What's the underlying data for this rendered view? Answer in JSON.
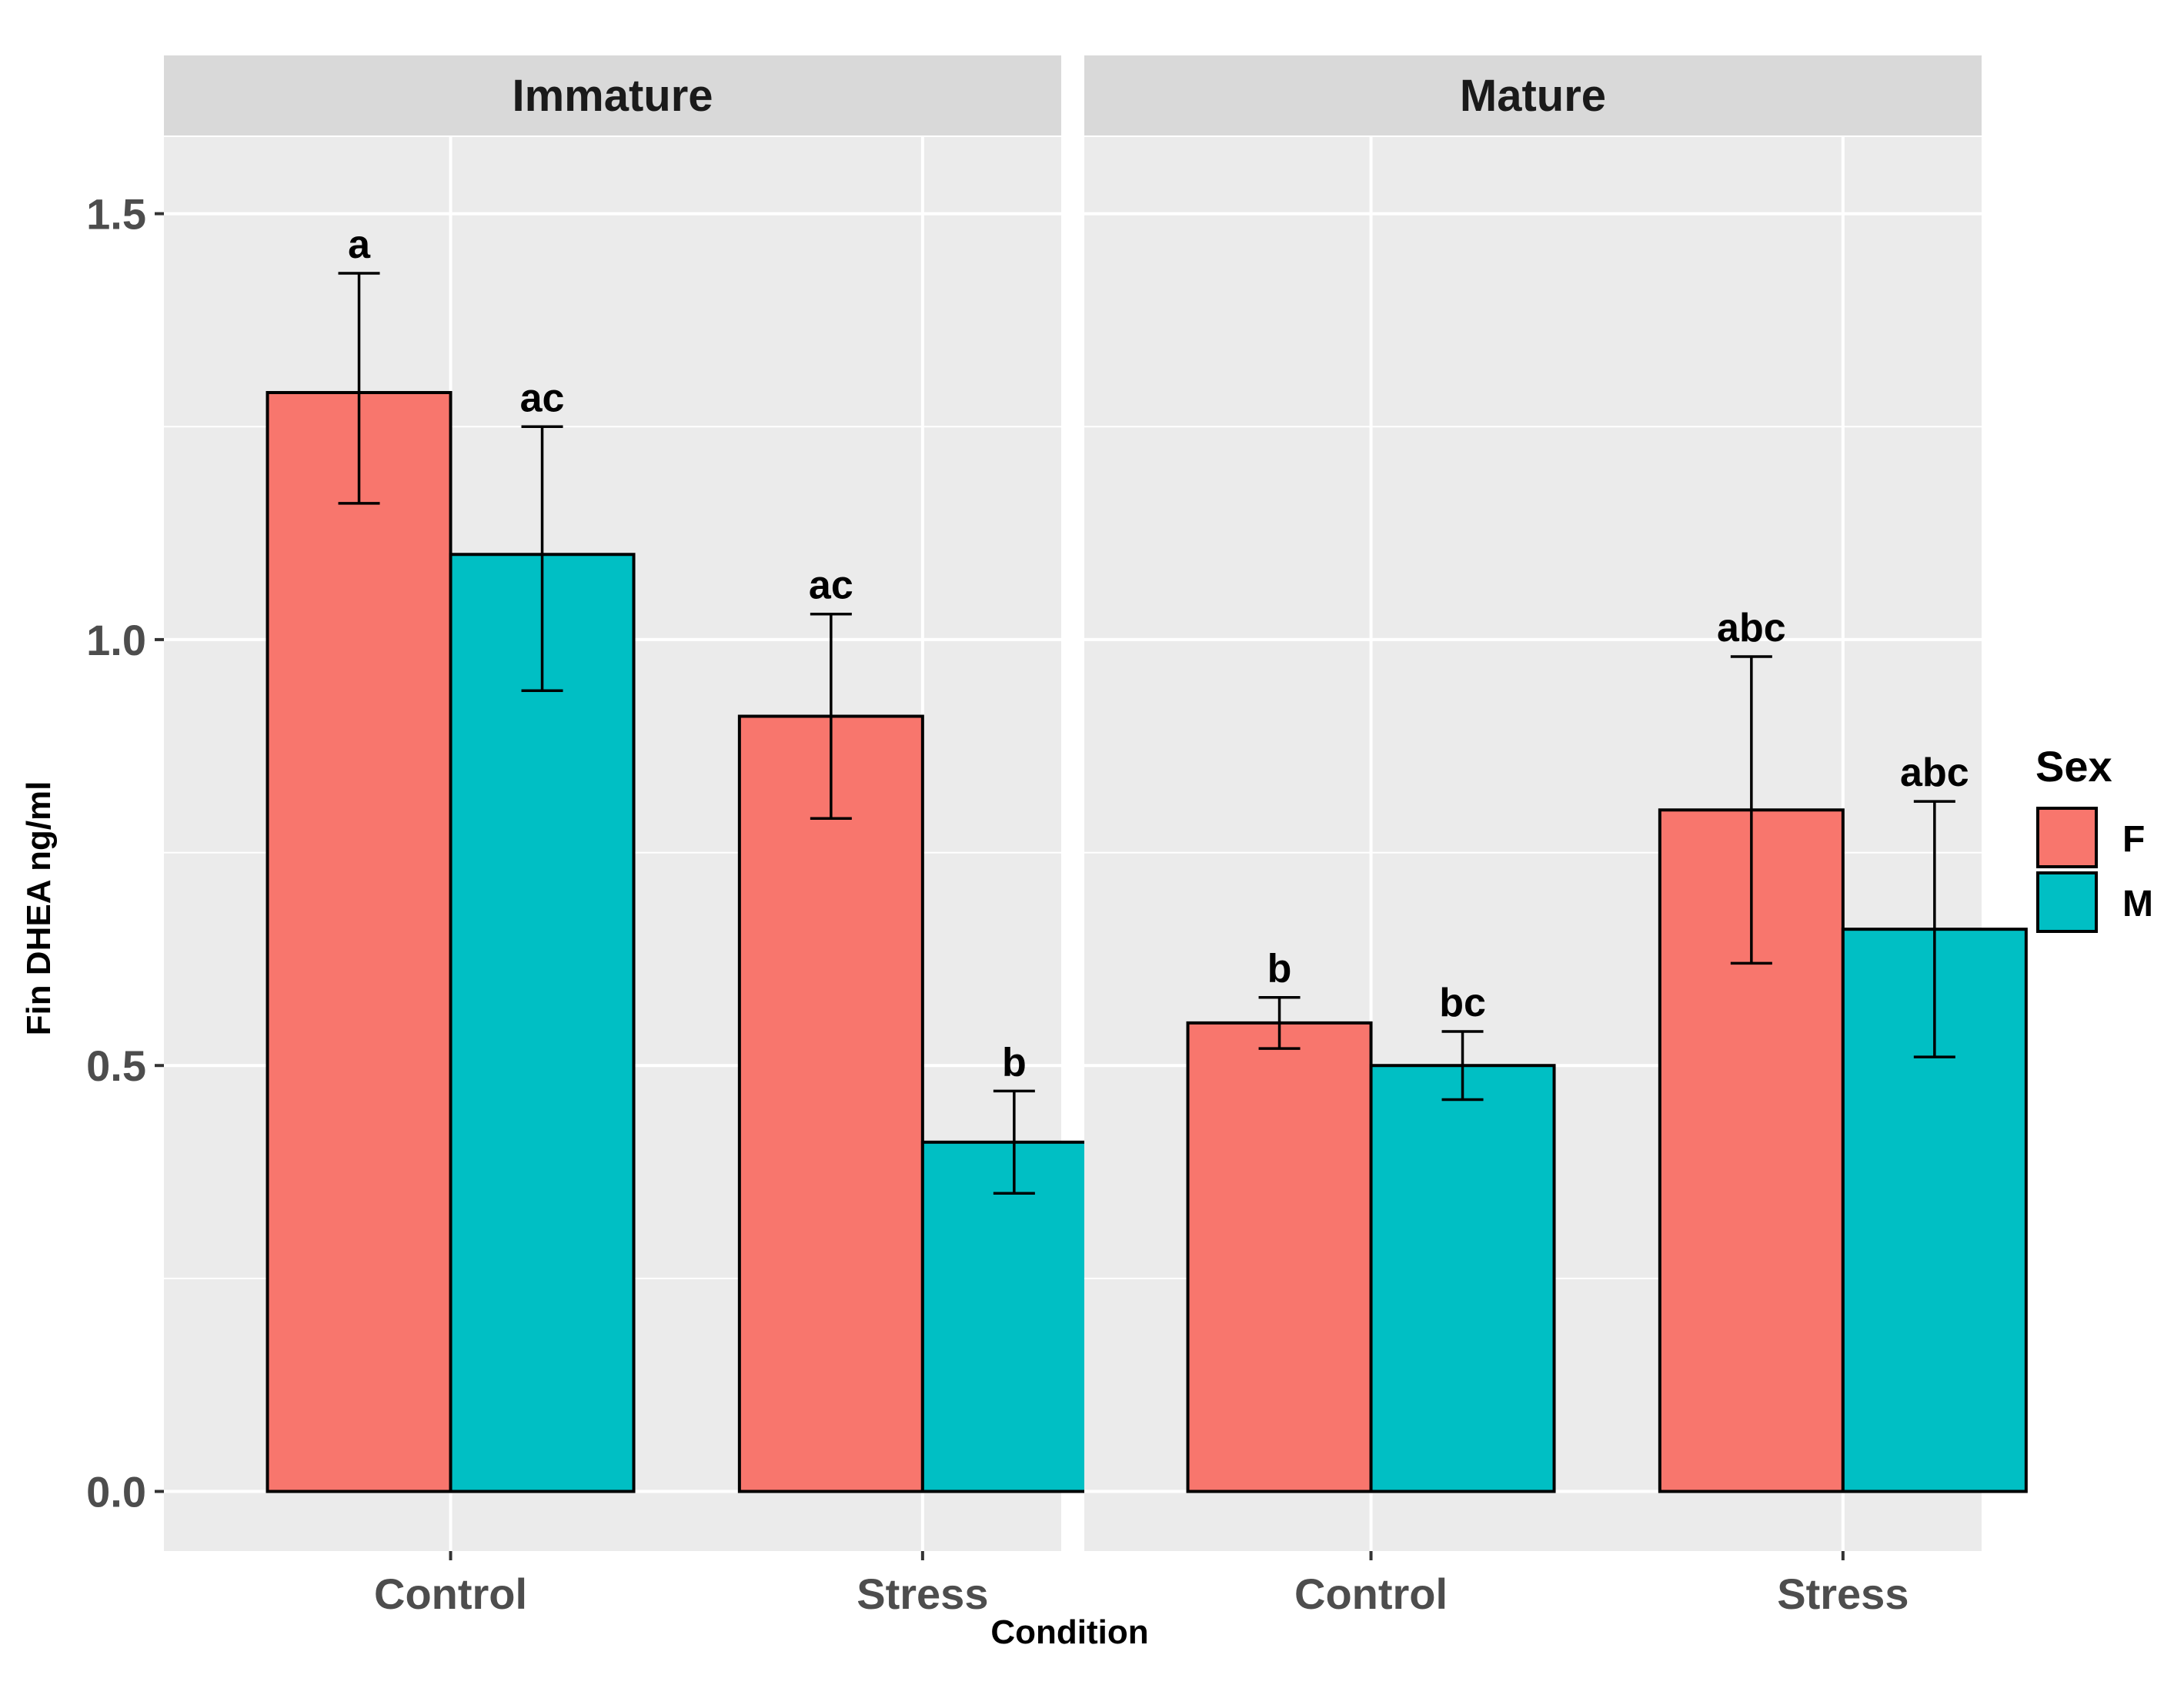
{
  "chart_data": {
    "type": "bar",
    "facet_variable": "Maturity",
    "facets": [
      "Immature",
      "Mature"
    ],
    "categories": [
      "Control",
      "Stress"
    ],
    "xlabel": "Condition",
    "ylabel": "Fin DHEA ng/ml",
    "ylim": [
      -0.07,
      1.59
    ],
    "yticks": [
      "0.0",
      "0.5",
      "1.0",
      "1.5"
    ],
    "ytick_values": [
      0,
      0.5,
      1.0,
      1.5
    ],
    "grid": true,
    "legend": {
      "title": "Sex",
      "position": "right",
      "entries": [
        "F",
        "M"
      ]
    },
    "colors": {
      "F": "#F8766D",
      "M": "#00BFC4",
      "panel": "#EBEBEB",
      "strip": "#D9D9D9",
      "grid": "#FFFFFF",
      "text": "#4D4D4D"
    },
    "series": [
      {
        "name": "F",
        "values": {
          "Immature": {
            "Control": 1.29,
            "Stress": 0.91
          },
          "Mature": {
            "Control": 0.55,
            "Stress": 0.8
          }
        },
        "error_low": {
          "Immature": {
            "Control": 1.16,
            "Stress": 0.79
          },
          "Mature": {
            "Control": 0.52,
            "Stress": 0.62
          }
        },
        "error_high": {
          "Immature": {
            "Control": 1.43,
            "Stress": 1.03
          },
          "Mature": {
            "Control": 0.58,
            "Stress": 0.98
          }
        },
        "annotations": {
          "Immature": {
            "Control": "a",
            "Stress": "ac"
          },
          "Mature": {
            "Control": "b",
            "Stress": "abc"
          }
        }
      },
      {
        "name": "M",
        "values": {
          "Immature": {
            "Control": 1.1,
            "Stress": 0.41
          },
          "Mature": {
            "Control": 0.5,
            "Stress": 0.66
          }
        },
        "error_low": {
          "Immature": {
            "Control": 0.94,
            "Stress": 0.35
          },
          "Mature": {
            "Control": 0.46,
            "Stress": 0.51
          }
        },
        "error_high": {
          "Immature": {
            "Control": 1.25,
            "Stress": 0.47
          },
          "Mature": {
            "Control": 0.54,
            "Stress": 0.81
          }
        },
        "annotations": {
          "Immature": {
            "Control": "ac",
            "Stress": "b"
          },
          "Mature": {
            "Control": "bc",
            "Stress": "abc"
          }
        }
      }
    ]
  }
}
